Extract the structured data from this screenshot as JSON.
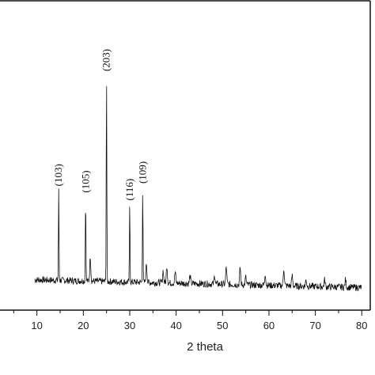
{
  "chart_data": {
    "type": "line",
    "title": "",
    "xlabel": "2 theta",
    "ylabel": "",
    "xlim": [
      0,
      82
    ],
    "ylim": [
      -6,
      100
    ],
    "x_ticks": [
      10,
      20,
      30,
      40,
      50,
      60,
      70,
      80
    ],
    "x_tick_labels": [
      "10",
      "20",
      "30",
      "40",
      "50",
      "60",
      "70",
      "80"
    ],
    "grid": false,
    "peak_labels": [
      {
        "text": "(103)",
        "x": 14.7,
        "y": 36.0
      },
      {
        "text": "(105)",
        "x": 20.5,
        "y": 33.5
      },
      {
        "text": "(203)",
        "x": 25.0,
        "y": 80.0
      },
      {
        "text": "(116)",
        "x": 30.0,
        "y": 30.5
      },
      {
        "text": "(109)",
        "x": 32.8,
        "y": 37.0
      }
    ],
    "series": [
      {
        "color": "#111111",
        "peaks": [
          {
            "x": 14.7,
            "y": 36.0
          },
          {
            "x": 20.5,
            "y": 33.5
          },
          {
            "x": 21.5,
            "y": 11.0
          },
          {
            "x": 25.0,
            "y": 80.0
          },
          {
            "x": 30.0,
            "y": 30.5
          },
          {
            "x": 32.8,
            "y": 37.0
          },
          {
            "x": 33.6,
            "y": 8.5
          },
          {
            "x": 37.2,
            "y": 5.5
          },
          {
            "x": 38.0,
            "y": 7.5
          },
          {
            "x": 39.8,
            "y": 5.0
          },
          {
            "x": 43.0,
            "y": 3.5
          },
          {
            "x": 48.3,
            "y": 3.8
          },
          {
            "x": 50.8,
            "y": 7.0
          },
          {
            "x": 53.8,
            "y": 6.5
          },
          {
            "x": 55.0,
            "y": 3.0
          },
          {
            "x": 59.2,
            "y": 4.5
          },
          {
            "x": 63.2,
            "y": 6.5
          },
          {
            "x": 65.0,
            "y": 3.5
          },
          {
            "x": 68.0,
            "y": 2.0
          },
          {
            "x": 72.0,
            "y": 2.0
          },
          {
            "x": 76.5,
            "y": 2.0
          }
        ],
        "baseline_start": 2.0,
        "baseline_end": -1.0,
        "x_range": [
          9.5,
          80.0
        ]
      }
    ]
  }
}
